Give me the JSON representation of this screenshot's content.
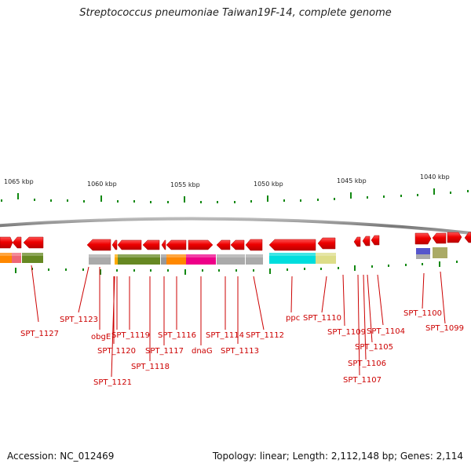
{
  "title": "Streptococcus pneumoniae Taiwan19F-14, complete genome",
  "footer": {
    "accession": "Accession: NC_012469",
    "stats": "Topology: linear; Length: 2,112,148 bp; Genes: 2,114"
  },
  "scale": {
    "labels": [
      "1065 kbp",
      "1060 kbp",
      "1055 kbp",
      "1050 kbp",
      "1045 kbp",
      "1040 kbp"
    ]
  },
  "gene_labels": [
    "SPT_1127",
    "SPT_1123",
    "obgE",
    "SPT_1121",
    "SPT_1120",
    "SPT_1119",
    "SPT_1118",
    "SPT_1117",
    "SPT_1116",
    "dnaG",
    "SPT_1114",
    "SPT_1113",
    "SPT_1112",
    "ppc",
    "SPT_1110",
    "SPT_1109",
    "SPT_1107",
    "SPT_1106",
    "SPT_1105",
    "SPT_1104",
    "SPT_1100",
    "SPT_1099"
  ],
  "colors": {
    "gene_arrow": "#ee0000",
    "label": "#cc0000",
    "tick": "#118811",
    "backbone": "#888888"
  }
}
